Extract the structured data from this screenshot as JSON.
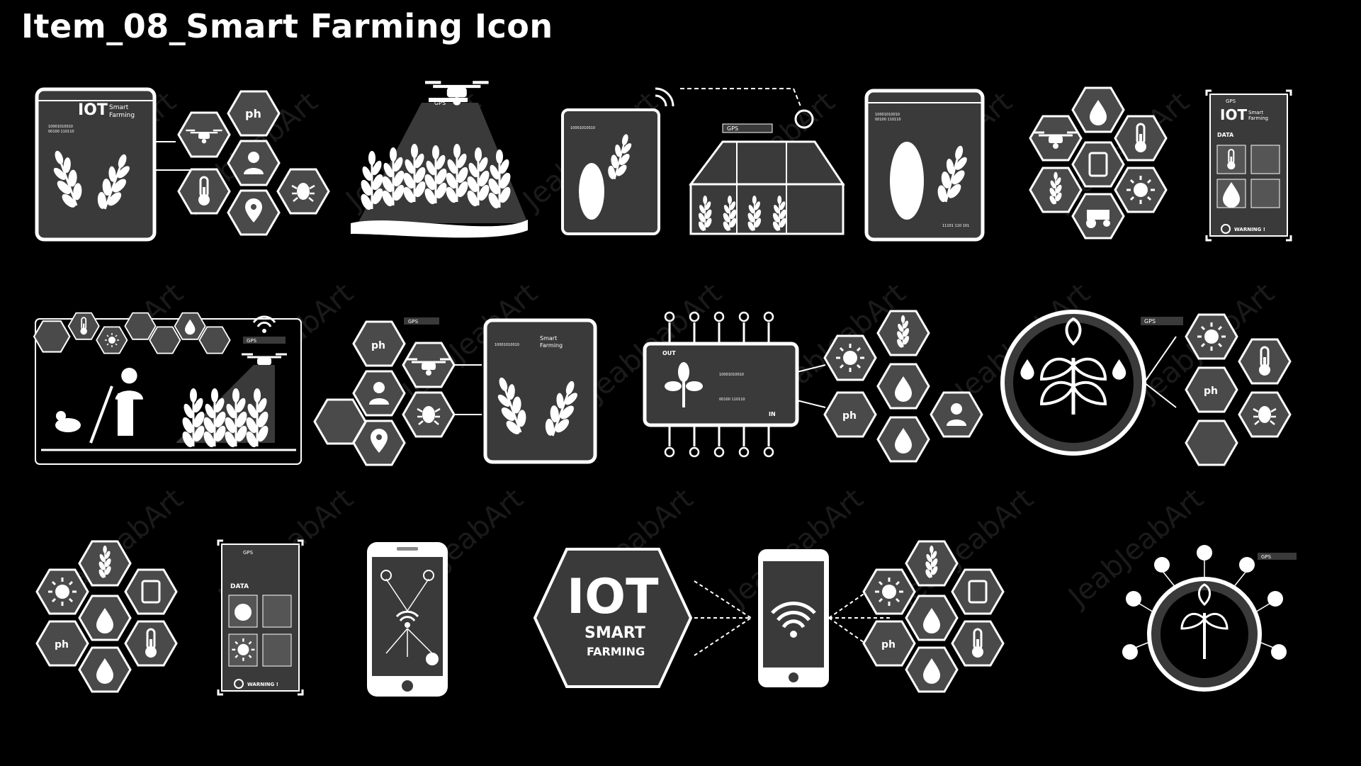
{
  "title": "Item_08_Smart Farming Icon",
  "watermark": "JeabJeabArt",
  "colors": {
    "background": "#000000",
    "panel": "#3a3a3a",
    "hex_fill": "#4a4a4a",
    "line": "#ffffff"
  },
  "labels": {
    "iot": "IOT",
    "smart": "Smart",
    "farming": "Farming",
    "smart_caps": "SMART",
    "farming_caps": "FARMING",
    "gps": "GPS",
    "ph": "ph",
    "data_upper": "DATA",
    "data_title": "DATA",
    "warning": "WARNING !",
    "out": "OUT",
    "in": "IN"
  },
  "binary": [
    "10001010010",
    "00100 110110",
    "11101 110 101"
  ],
  "icons": [
    {
      "name": "iot-tablet-wheat-hex-cluster",
      "icon": "tablet-icon"
    },
    {
      "name": "drone-wheat-field",
      "icon": "drone-icon"
    },
    {
      "name": "tablet-wifi-greenhouse",
      "icon": "greenhouse-icon"
    },
    {
      "name": "tablet-corn",
      "icon": "corn-icon"
    },
    {
      "name": "hex-cluster-weather",
      "icon": "hexagon-icon"
    },
    {
      "name": "phone-data-warning",
      "icon": "phone-icon"
    },
    {
      "name": "farmer-field-scene",
      "icon": "farmer-icon"
    },
    {
      "name": "hex-tablet-wheat",
      "icon": "tablet-icon"
    },
    {
      "name": "chip-plant-hex",
      "icon": "chip-icon"
    },
    {
      "name": "plant-circle-sensors",
      "icon": "plant-icon"
    },
    {
      "name": "hex-cluster-small",
      "icon": "hexagon-icon"
    },
    {
      "name": "phone-data-grid",
      "icon": "phone-icon"
    },
    {
      "name": "phone-network",
      "icon": "network-icon"
    },
    {
      "name": "iot-hex-phone-hex",
      "icon": "iot-icon"
    },
    {
      "name": "plant-circle-ring",
      "icon": "plant-icon"
    }
  ]
}
